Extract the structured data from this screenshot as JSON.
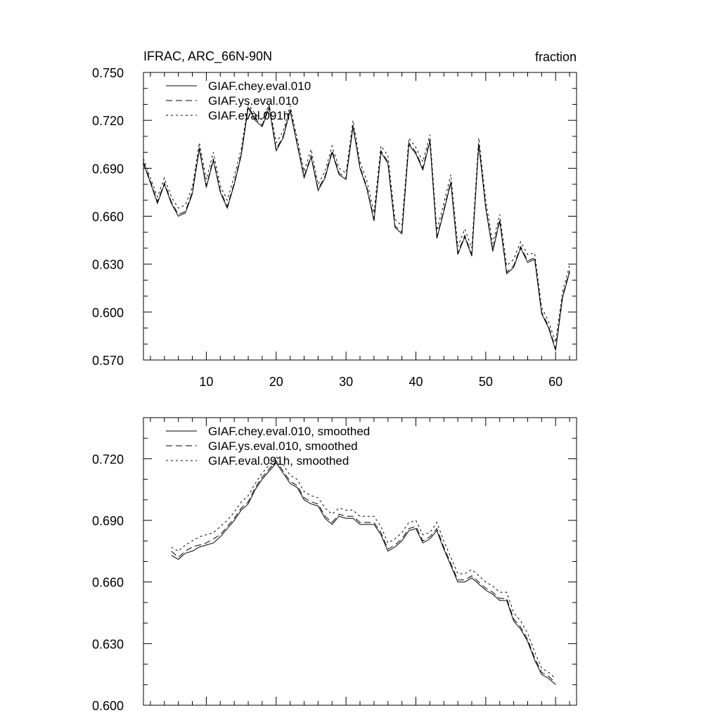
{
  "chart_data": [
    {
      "type": "line",
      "title": "IFRAC, ARC_66N-90N",
      "units": "fraction",
      "xlim": [
        1,
        63
      ],
      "ylim": [
        0.57,
        0.75
      ],
      "xticks": [
        10,
        20,
        30,
        40,
        50,
        60
      ],
      "yticks": [
        0.57,
        0.6,
        0.63,
        0.66,
        0.69,
        0.72,
        0.75
      ],
      "ytick_labels": [
        "0.570",
        "0.600",
        "0.630",
        "0.660",
        "0.690",
        "0.720",
        "0.750"
      ],
      "x_start": 1,
      "series": [
        {
          "name": "GIAF.chey.eval.010",
          "style": "solid",
          "values": [
            0.693,
            0.681,
            0.668,
            0.68,
            0.668,
            0.66,
            0.662,
            0.674,
            0.702,
            0.678,
            0.695,
            0.675,
            0.665,
            0.68,
            0.698,
            0.728,
            0.72,
            0.716,
            0.728,
            0.701,
            0.709,
            0.726,
            0.705,
            0.684,
            0.697,
            0.676,
            0.684,
            0.7,
            0.686,
            0.683,
            0.716,
            0.69,
            0.677,
            0.657,
            0.7,
            0.693,
            0.653,
            0.649,
            0.705,
            0.699,
            0.689,
            0.707,
            0.646,
            0.663,
            0.681,
            0.636,
            0.647,
            0.635,
            0.705,
            0.665,
            0.638,
            0.657,
            0.624,
            0.628,
            0.64,
            0.631,
            0.633,
            0.599,
            0.59,
            0.576,
            0.609,
            0.625
          ]
        },
        {
          "name": "GIAF.ys.eval.010",
          "style": "dashed",
          "values": [
            0.694,
            0.682,
            0.669,
            0.681,
            0.669,
            0.661,
            0.663,
            0.675,
            0.703,
            0.679,
            0.696,
            0.676,
            0.666,
            0.681,
            0.699,
            0.729,
            0.721,
            0.717,
            0.729,
            0.702,
            0.71,
            0.727,
            0.706,
            0.685,
            0.698,
            0.677,
            0.685,
            0.701,
            0.687,
            0.684,
            0.717,
            0.691,
            0.678,
            0.658,
            0.701,
            0.694,
            0.654,
            0.65,
            0.706,
            0.7,
            0.69,
            0.708,
            0.647,
            0.664,
            0.682,
            0.637,
            0.648,
            0.636,
            0.706,
            0.666,
            0.639,
            0.658,
            0.625,
            0.629,
            0.641,
            0.632,
            0.634,
            0.6,
            0.591,
            0.577,
            0.61,
            0.626
          ]
        },
        {
          "name": "GIAF.eval.091h",
          "style": "dotted",
          "values": [
            0.696,
            0.684,
            0.672,
            0.684,
            0.672,
            0.665,
            0.667,
            0.678,
            0.706,
            0.683,
            0.7,
            0.679,
            0.67,
            0.685,
            0.702,
            0.73,
            0.724,
            0.72,
            0.73,
            0.706,
            0.713,
            0.729,
            0.709,
            0.688,
            0.702,
            0.68,
            0.688,
            0.704,
            0.69,
            0.687,
            0.72,
            0.694,
            0.682,
            0.662,
            0.704,
            0.698,
            0.658,
            0.654,
            0.709,
            0.703,
            0.694,
            0.711,
            0.651,
            0.668,
            0.686,
            0.641,
            0.652,
            0.64,
            0.709,
            0.67,
            0.643,
            0.661,
            0.629,
            0.633,
            0.644,
            0.636,
            0.637,
            0.603,
            0.594,
            0.581,
            0.613,
            0.629
          ]
        }
      ]
    },
    {
      "type": "line",
      "title": "",
      "xlim": [
        1,
        63
      ],
      "ylim": [
        0.6,
        0.74
      ],
      "xticks": [
        10,
        20,
        30,
        40,
        50,
        60
      ],
      "yticks": [
        0.6,
        0.63,
        0.66,
        0.69,
        0.72
      ],
      "ytick_labels": [
        "0.600",
        "0.630",
        "0.660",
        "0.690",
        "0.720"
      ],
      "x_start": 5,
      "series": [
        {
          "name": "GIAF.chey.eval.010, smoothed",
          "style": "solid",
          "values": [
            0.673,
            0.671,
            0.674,
            0.675,
            0.677,
            0.678,
            0.679,
            0.682,
            0.686,
            0.69,
            0.695,
            0.698,
            0.705,
            0.71,
            0.714,
            0.718,
            0.713,
            0.708,
            0.706,
            0.7,
            0.698,
            0.697,
            0.691,
            0.688,
            0.692,
            0.691,
            0.691,
            0.688,
            0.688,
            0.688,
            0.683,
            0.675,
            0.677,
            0.68,
            0.685,
            0.686,
            0.679,
            0.681,
            0.685,
            0.676,
            0.668,
            0.66,
            0.66,
            0.662,
            0.659,
            0.656,
            0.654,
            0.651,
            0.651,
            0.641,
            0.637,
            0.631,
            0.622,
            0.615,
            0.613,
            0.61
          ]
        },
        {
          "name": "GIAF.ys.eval.010, smoothed",
          "style": "dashed",
          "values": [
            0.675,
            0.672,
            0.675,
            0.677,
            0.678,
            0.679,
            0.681,
            0.683,
            0.687,
            0.691,
            0.696,
            0.699,
            0.706,
            0.711,
            0.715,
            0.719,
            0.714,
            0.709,
            0.707,
            0.701,
            0.699,
            0.698,
            0.692,
            0.689,
            0.693,
            0.692,
            0.692,
            0.689,
            0.689,
            0.689,
            0.684,
            0.676,
            0.678,
            0.681,
            0.686,
            0.687,
            0.68,
            0.682,
            0.686,
            0.677,
            0.669,
            0.661,
            0.661,
            0.663,
            0.66,
            0.657,
            0.655,
            0.652,
            0.652,
            0.642,
            0.638,
            0.632,
            0.623,
            0.616,
            0.614,
            0.611
          ]
        },
        {
          "name": "GIAF.eval.091h, smoothed",
          "style": "dotted",
          "values": [
            0.677,
            0.675,
            0.678,
            0.68,
            0.682,
            0.683,
            0.684,
            0.687,
            0.69,
            0.694,
            0.699,
            0.702,
            0.708,
            0.713,
            0.717,
            0.721,
            0.717,
            0.712,
            0.71,
            0.704,
            0.702,
            0.701,
            0.696,
            0.693,
            0.696,
            0.695,
            0.695,
            0.692,
            0.692,
            0.692,
            0.687,
            0.679,
            0.681,
            0.684,
            0.689,
            0.69,
            0.683,
            0.684,
            0.689,
            0.68,
            0.672,
            0.664,
            0.664,
            0.666,
            0.663,
            0.66,
            0.658,
            0.655,
            0.655,
            0.645,
            0.641,
            0.635,
            0.626,
            0.618,
            0.616,
            0.613
          ]
        }
      ]
    }
  ]
}
